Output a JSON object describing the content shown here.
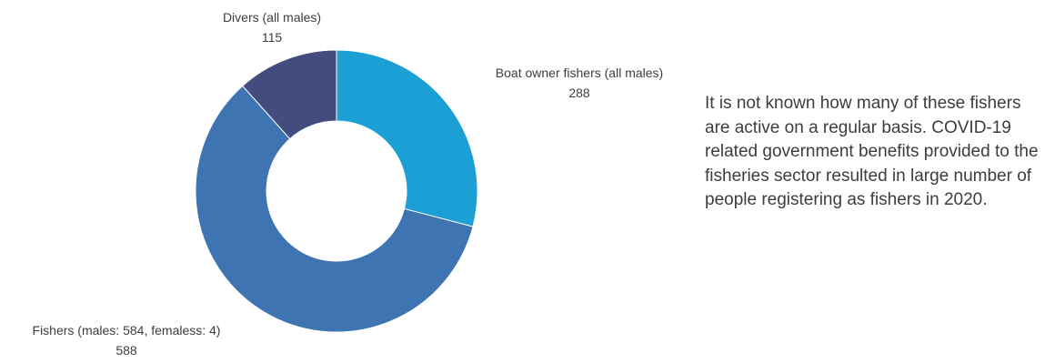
{
  "chart_data": {
    "type": "pie",
    "donut": true,
    "slices": [
      {
        "label": "Boat owner fishers (all males)",
        "value": 288,
        "value_label": "288",
        "color": "#1c9fd5"
      },
      {
        "label": "Fishers (males: 584, femaless: 4)",
        "value": 588,
        "value_label": "588",
        "color": "#3e74b2"
      },
      {
        "label": "Divers (all males)",
        "value": 115,
        "value_label": "115",
        "color": "#444b7f"
      }
    ],
    "legend": "none"
  },
  "note": {
    "text": "It is not known how many of these fishers are active on a regular basis. COVID-19 related government benefits provided to the fisheries sector resulted in large number of people registering as fishers in 2020."
  }
}
